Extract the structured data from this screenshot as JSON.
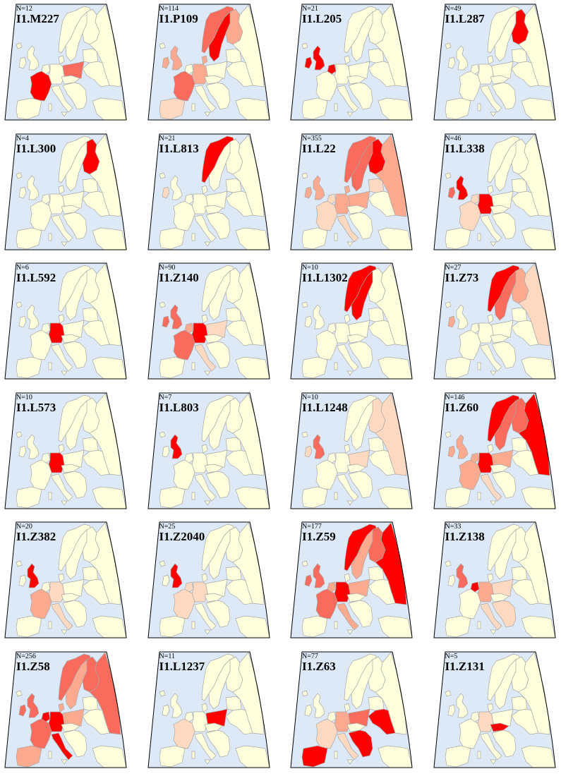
{
  "colors": {
    "sea": "#dde9f7",
    "land": "#ffffdd",
    "border": "#a8a8a8",
    "frame": "#000000",
    "level1": "#fcd9c0",
    "level2": "#fbaa90",
    "level3": "#f96b5c",
    "level4": "#ff0000"
  },
  "panels": [
    {
      "n": "N=12",
      "label": "I1.M227",
      "hl": {
        "france": 4,
        "poland": 3
      }
    },
    {
      "n": "N=114",
      "label": "I1.P109",
      "hl": {
        "norway": 3,
        "sweden": 4,
        "finland": 2,
        "uk": 2,
        "ireland": 2,
        "denmark": 2,
        "germany": 2,
        "france": 3,
        "iberia": 1
      }
    },
    {
      "n": "N=21",
      "label": "I1.L205",
      "hl": {
        "uk": 4,
        "ireland": 4,
        "netherlands": 4
      }
    },
    {
      "n": "N=49",
      "label": "I1.L287",
      "hl": {
        "finland": 4
      }
    },
    {
      "n": "N=4",
      "label": "I1.L300",
      "hl": {
        "finland": 4
      }
    },
    {
      "n": "N=21",
      "label": "I1.L813",
      "hl": {
        "norway": 4,
        "ireland": 1
      }
    },
    {
      "n": "N=355",
      "label": "I1.L22",
      "hl": {
        "norway": 3,
        "sweden": 3,
        "finland": 4,
        "russia": 2,
        "ireland": 2,
        "uk": 2,
        "germany": 2,
        "poland": 2,
        "baltics": 1,
        "denmark": 2,
        "netherlands": 1,
        "france": 1,
        "italy": 1
      }
    },
    {
      "n": "N=46",
      "label": "I1.L338",
      "hl": {
        "uk": 4,
        "ireland": 3,
        "germany": 4,
        "france": 1,
        "netherlands": 1
      }
    },
    {
      "n": "N=6",
      "label": "I1.L592",
      "hl": {
        "germany": 4
      }
    },
    {
      "n": "N=90",
      "label": "I1.Z140",
      "hl": {
        "germany": 4,
        "uk": 3,
        "ireland": 3,
        "france": 3,
        "italy": 1,
        "netherlands": 2,
        "poland": 1
      }
    },
    {
      "n": "N=10",
      "label": "I1.L1302",
      "hl": {
        "norway": 4,
        "sweden": 4
      }
    },
    {
      "n": "N=27",
      "label": "I1.Z73",
      "hl": {
        "norway": 4,
        "sweden": 3,
        "finland": 2,
        "russia": 1,
        "ireland": 2
      }
    },
    {
      "n": "N=10",
      "label": "I1.L573",
      "hl": {
        "germany": 4
      }
    },
    {
      "n": "N=7",
      "label": "I1.L803",
      "hl": {
        "uk": 4
      }
    },
    {
      "n": "N=10",
      "label": "I1.L1248",
      "hl": {
        "uk": 3,
        "ireland": 1,
        "russia": 1,
        "finland": 1,
        "poland": 1
      }
    },
    {
      "n": "N=146",
      "label": "I1.Z60",
      "hl": {
        "norway": 4,
        "sweden": 3,
        "finland": 3,
        "russia": 4,
        "germany": 4,
        "uk": 2,
        "ireland": 2,
        "france": 2,
        "poland": 2,
        "netherlands": 2,
        "italy": 1
      }
    },
    {
      "n": "N=20",
      "label": "I1.Z382",
      "hl": {
        "uk": 4,
        "france": 2,
        "germany": 1,
        "italy": 1
      }
    },
    {
      "n": "N=25",
      "label": "I1.Z2040",
      "hl": {
        "uk": 4,
        "germany": 1,
        "france": 1,
        "netherlands": 1
      }
    },
    {
      "n": "N=177",
      "label": "I1.Z59",
      "hl": {
        "norway": 4,
        "sweden": 2,
        "finland": 3,
        "russia": 4,
        "germany": 4,
        "uk": 3,
        "ireland": 3,
        "france": 3,
        "poland": 2,
        "netherlands": 2,
        "italy": 2
      }
    },
    {
      "n": "N=33",
      "label": "I1.Z138",
      "hl": {
        "uk": 3,
        "netherlands": 4,
        "germany": 2,
        "poland": 1,
        "italy": 1,
        "balkans": 1
      }
    },
    {
      "n": "N=256",
      "label": "I1.Z58",
      "hl": {
        "norway": 3,
        "sweden": 2,
        "finland": 3,
        "russia": 3,
        "uk": 3,
        "ireland": 3,
        "germany": 4,
        "france": 3,
        "netherlands": 4,
        "poland": 2,
        "italy": 4,
        "iberia": 2,
        "denmark": 2
      }
    },
    {
      "n": "N=11",
      "label": "I1.L1237",
      "hl": {
        "poland": 4,
        "france": 1
      }
    },
    {
      "n": "N=77",
      "label": "I1.Z63",
      "hl": {
        "iberia": 4,
        "germany": 2,
        "poland": 3,
        "ukraine": 4,
        "balkans": 4,
        "france": 1,
        "italy": 1
      }
    },
    {
      "n": "N=5",
      "label": "I1.Z131",
      "hl": {
        "germany": 1,
        "czech": 4
      }
    }
  ]
}
